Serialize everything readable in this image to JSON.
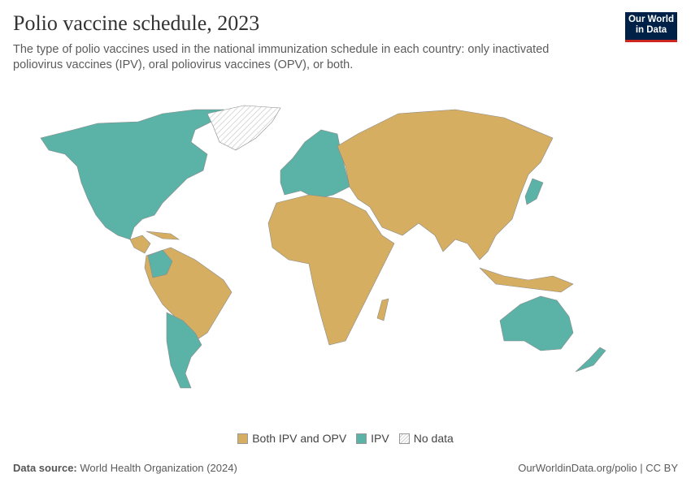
{
  "header": {
    "title": "Polio vaccine schedule, 2023",
    "subtitle": "The type of polio vaccines used in the national immunization schedule in each country: only inactivated poliovirus vaccines (IPV), oral poliovirus vaccines (OPV), or both.",
    "logo_text": "Our World in Data"
  },
  "legend": [
    {
      "label": "Both IPV and OPV",
      "color": "#d6ae62"
    },
    {
      "label": "IPV",
      "color": "#5bb3a8"
    },
    {
      "label": "No data",
      "color": "hatched"
    }
  ],
  "footer": {
    "source_label": "Data source:",
    "source": "World Health Organization (2024)",
    "link": "OurWorldinData.org/polio | CC BY"
  },
  "colors": {
    "both": "#d6ae62",
    "ipv": "#5bb3a8",
    "border": "#888888"
  }
}
